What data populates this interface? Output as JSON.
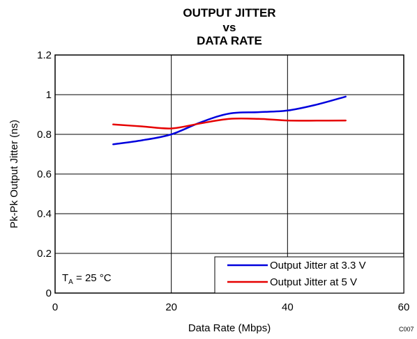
{
  "chart_data": {
    "type": "line",
    "title_lines": [
      "OUTPUT JITTER",
      "vs",
      "DATA RATE"
    ],
    "xlabel": "Data Rate (Mbps)",
    "ylabel": "Pk-Pk Output Jitter (ns)",
    "xlim": [
      0,
      60
    ],
    "ylim": [
      0,
      1.2
    ],
    "x_ticks": [
      0,
      20,
      40,
      60
    ],
    "y_ticks": [
      0,
      0.2,
      0.4,
      0.6,
      0.8,
      1,
      1.2
    ],
    "x_tick_labels": [
      "0",
      "20",
      "40",
      "60"
    ],
    "y_tick_labels": [
      "0",
      "0.2",
      "0.4",
      "0.6",
      "0.8",
      "1",
      "1.2"
    ],
    "grid": true,
    "legend_position": "bottom-right",
    "series": [
      {
        "name": "Output Jitter at 3.3 V",
        "color": "#0000dd",
        "x": [
          10,
          15,
          20,
          25,
          30,
          35,
          40,
          45,
          50
        ],
        "y": [
          0.75,
          0.77,
          0.8,
          0.86,
          0.905,
          0.912,
          0.92,
          0.95,
          0.99
        ]
      },
      {
        "name": "Output Jitter at 5 V",
        "color": "#e60000",
        "x": [
          10,
          15,
          20,
          25,
          30,
          35,
          40,
          45,
          50
        ],
        "y": [
          0.85,
          0.84,
          0.83,
          0.855,
          0.878,
          0.878,
          0.87,
          0.869,
          0.87
        ]
      }
    ],
    "annotation": {
      "prefix": "T",
      "subscript": "A",
      "suffix": " = 25 °C"
    },
    "figure_code": "C007"
  }
}
